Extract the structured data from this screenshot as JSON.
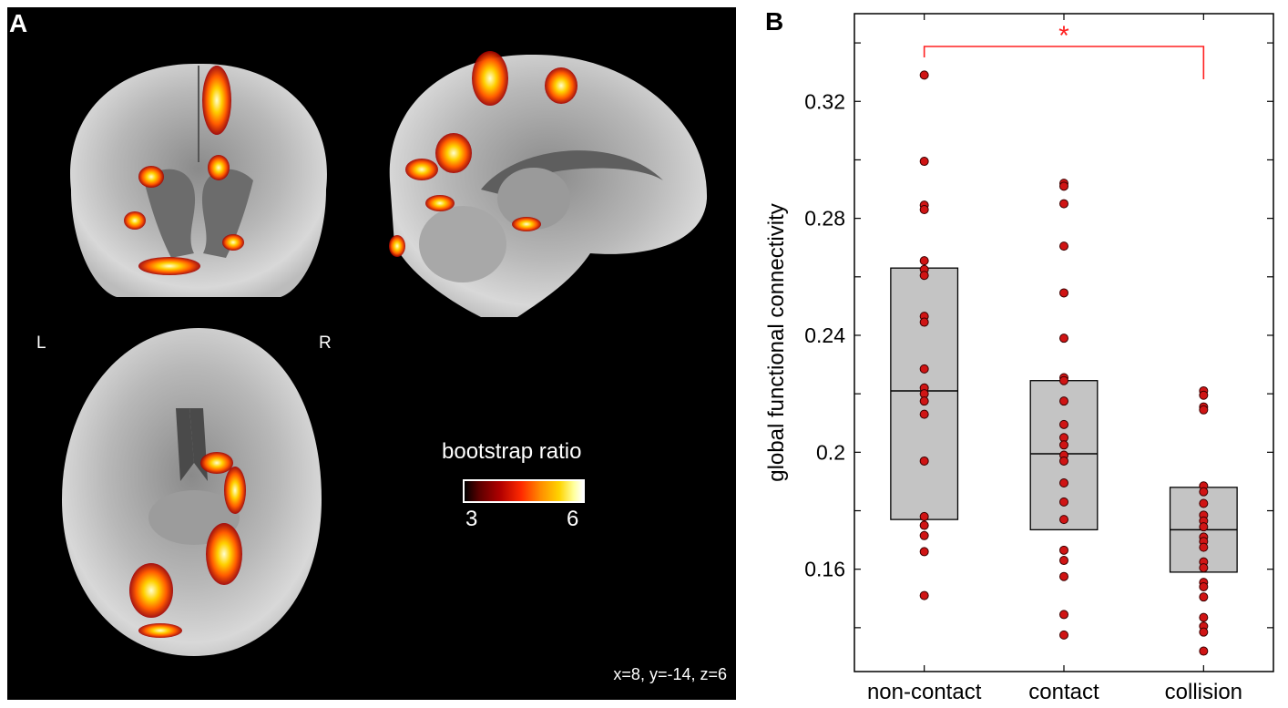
{
  "panel_a": {
    "label": "A",
    "left_label": "L",
    "right_label": "R",
    "colorbar": {
      "title": "bootstrap ratio",
      "min": "3",
      "max": "6",
      "colors": [
        "#000000",
        "#8b0000",
        "#ff2a00",
        "#ff8c00",
        "#ffff66",
        "#ffffff"
      ]
    },
    "coordinates": "x=8, y=-14, z=6"
  },
  "panel_b": {
    "label": "B"
  },
  "chart_data": {
    "type": "scatter",
    "subtype": "box-with-points",
    "categories": [
      "non-contact",
      "contact",
      "collision"
    ],
    "ylabel": "global functional connectivity",
    "xlabel": "",
    "ylim": [
      0.125,
      0.35
    ],
    "yticks": [
      "0.16",
      "0.2",
      "0.24",
      "0.28",
      "0.32"
    ],
    "grid": false,
    "boxes": [
      {
        "category": "non-contact",
        "q1": 0.177,
        "median": 0.221,
        "q3": 0.263
      },
      {
        "category": "contact",
        "q1": 0.1735,
        "median": 0.1995,
        "q3": 0.2245
      },
      {
        "category": "collision",
        "q1": 0.159,
        "median": 0.1735,
        "q3": 0.188
      }
    ],
    "points": [
      {
        "category": "non-contact",
        "values": [
          0.329,
          0.2995,
          0.2845,
          0.283,
          0.2655,
          0.2625,
          0.2605,
          0.2465,
          0.2445,
          0.2285,
          0.222,
          0.22,
          0.2175,
          0.213,
          0.197,
          0.178,
          0.175,
          0.1715,
          0.166,
          0.151
        ]
      },
      {
        "category": "contact",
        "values": [
          0.292,
          0.291,
          0.285,
          0.2705,
          0.2545,
          0.239,
          0.2255,
          0.2245,
          0.2175,
          0.2095,
          0.205,
          0.2025,
          0.199,
          0.197,
          0.1895,
          0.183,
          0.177,
          0.1665,
          0.163,
          0.1575,
          0.1445,
          0.1375
        ]
      },
      {
        "category": "collision",
        "values": [
          0.221,
          0.2195,
          0.2155,
          0.2145,
          0.1885,
          0.1865,
          0.1825,
          0.1785,
          0.1765,
          0.1745,
          0.171,
          0.1695,
          0.1675,
          0.1625,
          0.1605,
          0.1555,
          0.154,
          0.1505,
          0.1435,
          0.1405,
          0.1385,
          0.132
        ]
      }
    ],
    "significance": {
      "from": "non-contact",
      "to": "collision",
      "marker": "*",
      "color": "#ff2020"
    },
    "point_color": "#d01414",
    "box_fill": "#c4c4c4"
  }
}
